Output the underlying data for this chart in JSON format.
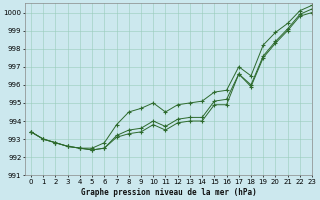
{
  "title": "Graphe pression niveau de la mer (hPa)",
  "background_color": "#cce8ee",
  "grid_color": "#99ccbb",
  "line_color": "#2d6a2d",
  "xlim": [
    -0.5,
    23
  ],
  "ylim": [
    991,
    1000.5
  ],
  "yticks": [
    991,
    992,
    993,
    994,
    995,
    996,
    997,
    998,
    999,
    1000
  ],
  "xticks": [
    0,
    1,
    2,
    3,
    4,
    5,
    6,
    7,
    8,
    9,
    10,
    11,
    12,
    13,
    14,
    15,
    16,
    17,
    18,
    19,
    20,
    21,
    22,
    23
  ],
  "series": [
    [
      993.4,
      993.0,
      992.8,
      992.6,
      992.5,
      992.4,
      992.5,
      993.1,
      993.3,
      993.4,
      993.8,
      993.5,
      993.9,
      994.0,
      994.0,
      994.9,
      994.9,
      996.6,
      995.9,
      997.5,
      998.3,
      999.0,
      999.8,
      1000.0
    ],
    [
      993.4,
      993.0,
      992.8,
      992.6,
      992.5,
      992.4,
      992.5,
      993.2,
      993.5,
      993.6,
      994.0,
      993.7,
      994.1,
      994.2,
      994.2,
      995.1,
      995.2,
      996.6,
      996.0,
      997.6,
      998.4,
      999.1,
      999.9,
      1000.2
    ],
    [
      993.4,
      993.0,
      992.8,
      992.6,
      992.5,
      992.5,
      992.8,
      993.8,
      994.5,
      994.7,
      995.0,
      994.5,
      994.9,
      995.0,
      995.1,
      995.6,
      995.7,
      997.0,
      996.5,
      998.2,
      998.9,
      999.4,
      1000.1,
      1000.4
    ]
  ]
}
